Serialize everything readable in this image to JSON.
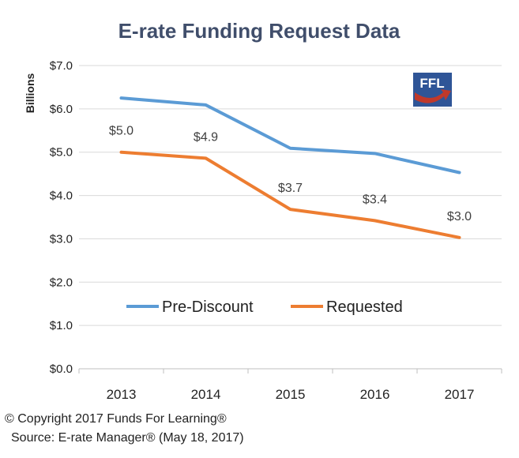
{
  "chart_data": {
    "type": "line",
    "title": "E-rate Funding Request Data",
    "ylabel": "Billions",
    "xlabel": "",
    "categories": [
      "2013",
      "2014",
      "2015",
      "2016",
      "2017"
    ],
    "y_ticks": [
      "$0.0",
      "$1.0",
      "$2.0",
      "$3.0",
      "$4.0",
      "$5.0",
      "$6.0",
      "$7.0"
    ],
    "ylim": [
      0,
      7
    ],
    "grid": true,
    "legend_position": "center",
    "series": [
      {
        "name": "Pre-Discount",
        "color": "#5b9bd5",
        "values": [
          6.25,
          6.09,
          5.09,
          4.97,
          4.53
        ],
        "data_labels": []
      },
      {
        "name": "Requested",
        "color": "#ed7d31",
        "values": [
          5.0,
          4.86,
          3.68,
          3.42,
          3.03
        ],
        "data_labels": [
          "$5.0",
          "$4.9",
          "$3.7",
          "$3.4",
          "$3.0"
        ]
      }
    ]
  },
  "logo": {
    "text": "FFL",
    "colors": {
      "blue": "#2f5597",
      "red": "#c0392b"
    }
  },
  "footer": {
    "copyright": "© Copyright 2017 Funds For Learning®",
    "source": "Source:  E-rate Manager® (May 18, 2017)"
  }
}
